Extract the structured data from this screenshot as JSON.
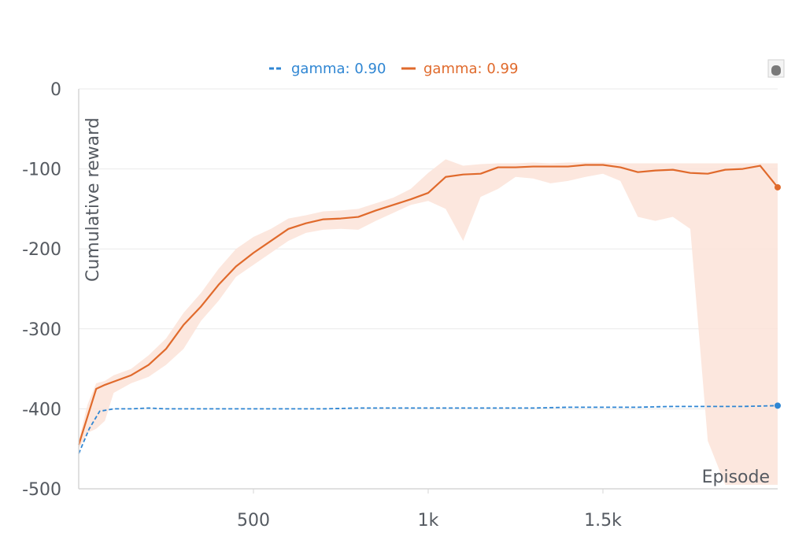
{
  "chart_data": {
    "type": "line",
    "xlabel": "Episode",
    "ylabel": "Cumulative reward",
    "xlim": [
      0,
      2000
    ],
    "ylim": [
      -500,
      0
    ],
    "xticks": [
      500,
      1000,
      1500
    ],
    "xtick_labels": [
      "500",
      "1k",
      "1.5k"
    ],
    "yticks": [
      0,
      -100,
      -200,
      -300,
      -400,
      -500
    ],
    "ytick_labels": [
      "0",
      "-100",
      "-200",
      "-300",
      "-400",
      "-500"
    ],
    "grid": true,
    "legend_position": "top-center",
    "series": [
      {
        "name": "gamma: 0.90",
        "color": "#2f86d3",
        "dash": "dashed",
        "x": [
          0,
          30,
          60,
          100,
          150,
          200,
          250,
          300,
          400,
          500,
          600,
          700,
          800,
          900,
          1000,
          1100,
          1200,
          1300,
          1400,
          1500,
          1600,
          1700,
          1800,
          1900,
          2000
        ],
        "y": [
          -456,
          -425,
          -403,
          -400,
          -400,
          -399,
          -400,
          -400,
          -400,
          -400,
          -400,
          -400,
          -399,
          -399,
          -399,
          -399,
          -399,
          -399,
          -398,
          -398,
          -398,
          -397,
          -397,
          -397,
          -396
        ]
      },
      {
        "name": "gamma: 0.99",
        "color": "#e06a2c",
        "dash": "solid",
        "x": [
          0,
          25,
          50,
          75,
          100,
          150,
          200,
          250,
          300,
          350,
          400,
          450,
          500,
          550,
          600,
          650,
          700,
          750,
          800,
          850,
          900,
          950,
          1000,
          1050,
          1100,
          1150,
          1200,
          1250,
          1300,
          1350,
          1400,
          1450,
          1500,
          1550,
          1600,
          1650,
          1700,
          1750,
          1800,
          1850,
          1900,
          1950,
          2000
        ],
        "y": [
          -445,
          -410,
          -375,
          -370,
          -366,
          -358,
          -345,
          -325,
          -295,
          -272,
          -245,
          -222,
          -205,
          -190,
          -175,
          -168,
          -163,
          -162,
          -160,
          -152,
          -145,
          -138,
          -130,
          -110,
          -107,
          -106,
          -98,
          -98,
          -97,
          -97,
          -97,
          -95,
          -95,
          -98,
          -104,
          -102,
          -101,
          -105,
          -106,
          -101,
          -100,
          -96,
          -123
        ]
      }
    ],
    "bands": [
      {
        "series": "gamma: 0.99",
        "color": "#fbe3d8",
        "x": [
          0,
          25,
          50,
          75,
          100,
          150,
          200,
          250,
          300,
          350,
          400,
          450,
          500,
          550,
          600,
          650,
          700,
          750,
          800,
          850,
          900,
          950,
          1000,
          1050,
          1100,
          1150,
          1200,
          1250,
          1300,
          1350,
          1400,
          1450,
          1500,
          1550,
          1600,
          1650,
          1700,
          1750,
          1800,
          1850,
          1900,
          1950,
          2000
        ],
        "upper": [
          -440,
          -395,
          -368,
          -365,
          -358,
          -350,
          -333,
          -312,
          -280,
          -255,
          -225,
          -200,
          -185,
          -175,
          -162,
          -158,
          -153,
          -152,
          -150,
          -143,
          -136,
          -125,
          -105,
          -88,
          -96,
          -94,
          -93,
          -93,
          -92,
          -93,
          -92,
          -92,
          -92,
          -93,
          -93,
          -93,
          -93,
          -93,
          -93,
          -93,
          -93,
          -93,
          -93
        ],
        "lower": [
          -450,
          -430,
          -425,
          -415,
          -380,
          -368,
          -360,
          -345,
          -325,
          -290,
          -265,
          -235,
          -220,
          -205,
          -190,
          -180,
          -176,
          -175,
          -176,
          -165,
          -155,
          -145,
          -140,
          -150,
          -190,
          -135,
          -125,
          -110,
          -112,
          -118,
          -115,
          -110,
          -106,
          -115,
          -160,
          -165,
          -160,
          -175,
          -440,
          -495,
          -495,
          -495,
          -495
        ]
      }
    ]
  }
}
